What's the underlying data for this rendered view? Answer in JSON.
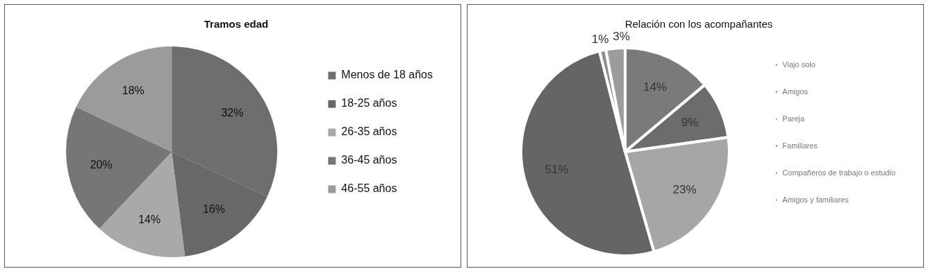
{
  "chart_data": [
    {
      "type": "pie",
      "title": "Tramos edad",
      "categories": [
        "Menos de 18 años",
        "18-25 años",
        "26-35 años",
        "36-45 años",
        "46-55 años"
      ],
      "values": [
        32,
        16,
        14,
        20,
        18
      ],
      "colors": [
        "#6e6e6e",
        "#686868",
        "#a9a9a9",
        "#767676",
        "#9b9b9b"
      ],
      "value_labels": [
        "32%",
        "16%",
        "14%",
        "20%",
        "18%"
      ],
      "legend": "right"
    },
    {
      "type": "pie",
      "title": "Relación con los acompañantes",
      "categories": [
        "Viajo solo",
        "Amigos",
        "Pareja",
        "Familiares",
        "Compañeros de trabajo o estudio",
        "Amigos y familiares"
      ],
      "values": [
        14,
        9,
        23,
        51,
        1,
        3
      ],
      "colors": [
        "#7a7a7a",
        "#6c6c6c",
        "#a6a6a6",
        "#656565",
        "#8e8e8e",
        "#9c9c9c"
      ],
      "value_labels": [
        "14%",
        "9%",
        "23%",
        "51%",
        "1%",
        "3%"
      ],
      "legend": "right"
    }
  ]
}
